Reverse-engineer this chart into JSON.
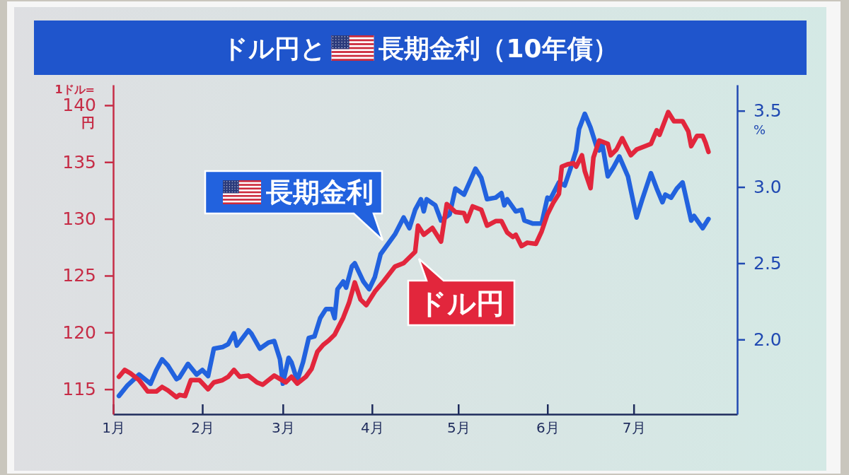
{
  "chart_data": {
    "type": "line",
    "title": "ドル円と長期金利（10年債）",
    "ylabel": "1ドル=",
    "y2label": "%",
    "annotations": [
      "円"
    ],
    "xlim": [
      "--01-01",
      "--08-06"
    ],
    "xticks": [
      {
        "value": "--01-01",
        "label": "1月"
      },
      {
        "value": "--02-01",
        "label": "2月"
      },
      {
        "value": "--03-01",
        "label": "3月"
      },
      {
        "value": "--04-01",
        "label": "4月"
      },
      {
        "value": "--05-01",
        "label": "5月"
      },
      {
        "value": "--06-01",
        "label": "6月"
      },
      {
        "value": "--07-01",
        "label": "7月"
      }
    ],
    "ylim": [
      112.8,
      141.8
    ],
    "yticks": [
      115,
      120,
      125,
      130,
      135,
      140
    ],
    "y2lim": [
      1.51,
      3.67
    ],
    "y2ticks": [
      {
        "value": 2,
        "label": "2.0"
      },
      2.5,
      {
        "value": 3,
        "label": "3.0"
      },
      3.5
    ],
    "series": [
      {
        "name": "ドル円",
        "color": "#e2263c",
        "x": [
          "--01-03",
          "--01-05",
          "--01-07",
          "--01-10",
          "--01-13",
          "--01-16",
          "--01-18",
          "--01-20",
          "--01-23",
          "--01-24",
          "--01-26",
          "--01-28",
          "--01-31",
          "--02-03",
          "--02-05",
          "--02-08",
          "--02-10",
          "--02-12",
          "--02-14",
          "--02-17",
          "--02-20",
          "--02-22",
          "--02-24",
          "--02-26",
          "--03-02",
          "--03-04",
          "--03-06",
          "--03-09",
          "--03-11",
          "--03-13",
          "--03-15",
          "--03-17",
          "--03-19",
          "--03-22",
          "--03-24",
          "--03-26",
          "--03-28",
          "--03-30",
          "--04-02",
          "--04-05",
          "--04-09",
          "--04-12",
          "--04-16",
          "--04-17",
          "--04-19",
          "--04-22",
          "--04-25",
          "--04-27",
          "--04-30",
          "--05-03",
          "--05-04",
          "--05-06",
          "--05-09",
          "--05-11",
          "--05-14",
          "--05-16",
          "--05-18",
          "--05-20",
          "--05-21",
          "--05-23",
          "--05-25",
          "--05-28",
          "--05-30",
          "--06-01",
          "--06-03",
          "--06-05",
          "--06-06",
          "--06-08",
          "--06-10",
          "--06-11",
          "--06-13",
          "--06-14",
          "--06-16",
          "--06-17",
          "--06-19",
          "--06-22",
          "--06-23",
          "--06-25",
          "--06-27",
          "--06-30",
          "--07-02",
          "--07-05",
          "--07-07",
          "--07-09",
          "--07-10",
          "--07-13",
          "--07-15",
          "--07-18",
          "--07-20",
          "--07-21",
          "--07-23",
          "--07-25",
          "--07-26",
          "--07-27"
        ],
        "values": [
          116.1,
          116.7,
          116.4,
          115.8,
          114.8,
          114.8,
          115.2,
          114.9,
          114.3,
          114.5,
          114.4,
          115.8,
          115.8,
          115.0,
          115.6,
          115.8,
          116.1,
          116.7,
          116.1,
          116.2,
          115.6,
          115.4,
          115.8,
          116.2,
          115.6,
          116.1,
          115.5,
          116.1,
          116.8,
          118.3,
          118.9,
          119.3,
          119.8,
          121.3,
          122.6,
          124.4,
          122.9,
          122.4,
          123.6,
          124.5,
          125.8,
          126.1,
          127.1,
          129.4,
          128.6,
          129.2,
          128.0,
          131.3,
          130.6,
          130.5,
          129.8,
          131.1,
          130.8,
          129.4,
          129.8,
          129.8,
          128.8,
          128.4,
          128.6,
          127.6,
          127.9,
          127.8,
          128.9,
          130.4,
          131.4,
          132.2,
          134.6,
          134.8,
          134.9,
          134.6,
          135.6,
          134.2,
          132.7,
          135.4,
          136.9,
          136.6,
          135.6,
          136.1,
          137.1,
          135.6,
          136.1,
          136.4,
          136.6,
          137.8,
          137.4,
          139.4,
          138.6,
          138.6,
          137.7,
          136.4,
          137.3,
          137.3,
          136.7,
          135.9
        ]
      },
      {
        "name": "長期金利",
        "color": "#2262de",
        "axis": "y2",
        "x": [
          "--01-03",
          "--01-06",
          "--01-10",
          "--01-12",
          "--01-14",
          "--01-16",
          "--01-18",
          "--01-20",
          "--01-23",
          "--01-24",
          "--01-27",
          "--01-30",
          "--02-01",
          "--02-03",
          "--02-05",
          "--02-08",
          "--02-10",
          "--02-12",
          "--02-13",
          "--02-17",
          "--02-18",
          "--02-21",
          "--02-24",
          "--02-26",
          "--02-28",
          "--03-01",
          "--03-03",
          "--03-04",
          "--03-06",
          "--03-08",
          "--03-10",
          "--03-12",
          "--03-14",
          "--03-16",
          "--03-18",
          "--03-19",
          "--03-20",
          "--03-22",
          "--03-23",
          "--03-25",
          "--03-26",
          "--03-27",
          "--03-29",
          "--03-31",
          "--04-02",
          "--04-04",
          "--04-09",
          "--04-12",
          "--04-14",
          "--04-16",
          "--04-18",
          "--04-19",
          "--04-20",
          "--04-23",
          "--04-25",
          "--04-28",
          "--04-30",
          "--05-03",
          "--05-07",
          "--05-09",
          "--05-11",
          "--05-14",
          "--05-16",
          "--05-17",
          "--05-18",
          "--05-21",
          "--05-23",
          "--05-24",
          "--05-27",
          "--05-30",
          "--06-01",
          "--06-02",
          "--06-05",
          "--06-07",
          "--06-09",
          "--06-11",
          "--06-12",
          "--06-14",
          "--06-16",
          "--06-18",
          "--06-19",
          "--06-20",
          "--06-22",
          "--06-24",
          "--06-26",
          "--06-29",
          "--07-02",
          "--07-04",
          "--07-07",
          "--07-09",
          "--07-11",
          "--07-12",
          "--07-14",
          "--07-16",
          "--07-18",
          "--07-21",
          "--07-22",
          "--07-25",
          "--07-27"
        ],
        "values": [
          1.63,
          1.7,
          1.77,
          1.74,
          1.71,
          1.8,
          1.87,
          1.83,
          1.74,
          1.75,
          1.84,
          1.77,
          1.8,
          1.76,
          1.94,
          1.95,
          1.97,
          2.04,
          1.96,
          2.06,
          2.04,
          1.94,
          1.98,
          1.99,
          1.87,
          1.71,
          1.88,
          1.85,
          1.73,
          1.85,
          2.01,
          2.02,
          2.14,
          2.2,
          2.2,
          2.14,
          2.33,
          2.38,
          2.34,
          2.48,
          2.5,
          2.46,
          2.38,
          2.33,
          2.41,
          2.56,
          2.69,
          2.8,
          2.73,
          2.85,
          2.92,
          2.84,
          2.92,
          2.88,
          2.78,
          2.82,
          2.99,
          2.95,
          3.12,
          3.06,
          2.92,
          2.93,
          2.96,
          2.88,
          2.92,
          2.84,
          2.85,
          2.78,
          2.76,
          2.76,
          2.93,
          2.92,
          3.03,
          3.01,
          3.12,
          3.24,
          3.38,
          3.48,
          3.39,
          3.27,
          3.24,
          3.29,
          3.07,
          3.13,
          3.2,
          3.07,
          2.8,
          2.92,
          3.09,
          2.99,
          2.9,
          2.95,
          2.93,
          2.99,
          3.03,
          2.78,
          2.81,
          2.73,
          2.79
        ]
      }
    ]
  }
}
